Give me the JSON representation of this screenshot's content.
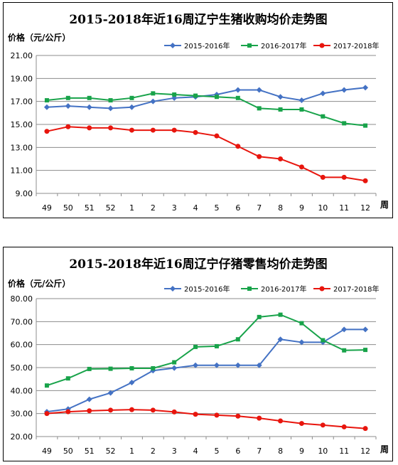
{
  "chart_data": [
    {
      "type": "line",
      "title": "2015-2018年近16周辽宁生猪收购均价走势图",
      "ylabel": "价格（元/公斤）",
      "xlabel": "周",
      "categories": [
        "49",
        "50",
        "51",
        "52",
        "1",
        "2",
        "3",
        "4",
        "5",
        "6",
        "7",
        "8",
        "9",
        "10",
        "11",
        "12"
      ],
      "ylim": [
        9.0,
        21.0
      ],
      "yticks": [
        "21.00",
        "19.00",
        "17.00",
        "15.00",
        "13.00",
        "11.00",
        "9.00"
      ],
      "yticks_values": [
        21,
        19,
        17,
        15,
        13,
        11,
        9
      ],
      "legend_position": "top-right",
      "grid": true,
      "series": [
        {
          "name": "2015-2016年",
          "color": "#4472C4",
          "marker": "diamond",
          "values": [
            16.5,
            16.6,
            16.5,
            16.4,
            16.5,
            17.0,
            17.3,
            17.4,
            17.6,
            18.0,
            18.0,
            17.4,
            17.1,
            17.7,
            18.0,
            18.2
          ]
        },
        {
          "name": "2016-2017年",
          "color": "#18A34A",
          "marker": "square",
          "values": [
            17.1,
            17.3,
            17.3,
            17.1,
            17.3,
            17.7,
            17.6,
            17.5,
            17.4,
            17.3,
            16.4,
            16.3,
            16.3,
            15.7,
            15.1,
            14.9
          ]
        },
        {
          "name": "2017-2018年",
          "color": "#E8150D",
          "marker": "circle",
          "values": [
            14.4,
            14.8,
            14.7,
            14.7,
            14.5,
            14.5,
            14.5,
            14.3,
            14.0,
            13.1,
            12.2,
            12.0,
            11.3,
            10.4,
            10.4,
            10.1
          ]
        }
      ]
    },
    {
      "type": "line",
      "title": "2015-2018年近16周辽宁仔猪零售均价走势图",
      "ylabel": "价格（元/公斤）",
      "xlabel": "周",
      "categories": [
        "49",
        "50",
        "51",
        "52",
        "1",
        "2",
        "3",
        "4",
        "5",
        "6",
        "7",
        "8",
        "9",
        "10",
        "11",
        "12"
      ],
      "ylim": [
        20.0,
        80.0
      ],
      "yticks": [
        "80.00",
        "70.00",
        "60.00",
        "50.00",
        "40.00",
        "30.00",
        "20.00"
      ],
      "yticks_values": [
        80,
        70,
        60,
        50,
        40,
        30,
        20
      ],
      "legend_position": "top-right",
      "grid": true,
      "series": [
        {
          "name": "2015-2016年",
          "color": "#4472C4",
          "marker": "diamond",
          "values": [
            30.8,
            32.0,
            36.2,
            39.0,
            43.5,
            48.7,
            49.8,
            51.0,
            51.0,
            51.0,
            51.0,
            62.3,
            61.0,
            61.0,
            66.6,
            66.6
          ]
        },
        {
          "name": "2016-2017年",
          "color": "#18A34A",
          "marker": "square",
          "values": [
            42.2,
            45.3,
            49.4,
            49.5,
            49.7,
            49.7,
            52.3,
            59.0,
            59.3,
            62.3,
            72.0,
            73.0,
            69.3,
            61.9,
            57.5,
            57.7
          ]
        },
        {
          "name": "2017-2018年",
          "color": "#E8150D",
          "marker": "circle",
          "values": [
            30.0,
            30.8,
            31.2,
            31.5,
            31.7,
            31.5,
            30.7,
            29.7,
            29.3,
            28.9,
            28.0,
            26.8,
            25.7,
            25.0,
            24.2,
            23.5
          ]
        }
      ]
    }
  ]
}
